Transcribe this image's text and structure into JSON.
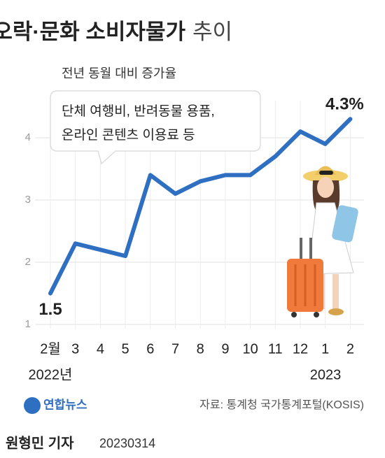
{
  "chart_data": {
    "type": "line",
    "title": "오락·문화 소비자물가",
    "title_suffix": "추이",
    "subtitle": "전년 동월 대비 증가율",
    "annotation": [
      "단체 여행비, 반려동물 용품,",
      "온라인 콘텐츠 이용료 등"
    ],
    "categories": [
      "2월",
      "3",
      "4",
      "5",
      "6",
      "7",
      "8",
      "9",
      "10",
      "11",
      "12",
      "1",
      "2"
    ],
    "year_labels": [
      "2022년",
      "2023"
    ],
    "values": [
      1.5,
      2.3,
      2.2,
      2.1,
      3.4,
      3.1,
      3.3,
      3.4,
      3.4,
      3.7,
      4.1,
      3.9,
      4.3
    ],
    "value_labels": [
      "1.5",
      null,
      null,
      null,
      null,
      null,
      null,
      null,
      null,
      null,
      null,
      null,
      "4.3%"
    ],
    "color": "#2f6fc2",
    "ylim": [
      1,
      4.6
    ],
    "yticks": [
      1,
      2,
      3,
      4
    ],
    "grid": true,
    "logo": "연합뉴스",
    "source": "자료: 통계청 국가통계포털(KOSIS)",
    "reporter": "원형민 기자",
    "date": "20230314"
  }
}
